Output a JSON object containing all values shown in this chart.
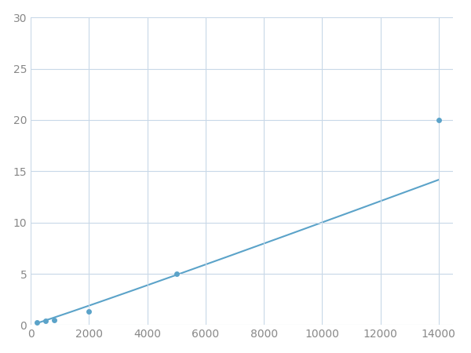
{
  "x_data": [
    200,
    500,
    800,
    2000,
    5000,
    14000
  ],
  "y_data": [
    0.3,
    0.4,
    0.5,
    1.3,
    5.0,
    20.0
  ],
  "line_color": "#5ba3c9",
  "marker_color": "#5ba3c9",
  "marker_size": 5,
  "line_width": 1.5,
  "xlim": [
    0,
    14500
  ],
  "ylim": [
    0,
    30
  ],
  "xticks": [
    0,
    2000,
    4000,
    6000,
    8000,
    10000,
    12000,
    14000
  ],
  "yticks": [
    0,
    5,
    10,
    15,
    20,
    25,
    30
  ],
  "grid_color": "#c8d8e8",
  "background_color": "#ffffff",
  "tick_label_fontsize": 10,
  "tick_label_color": "#888888"
}
